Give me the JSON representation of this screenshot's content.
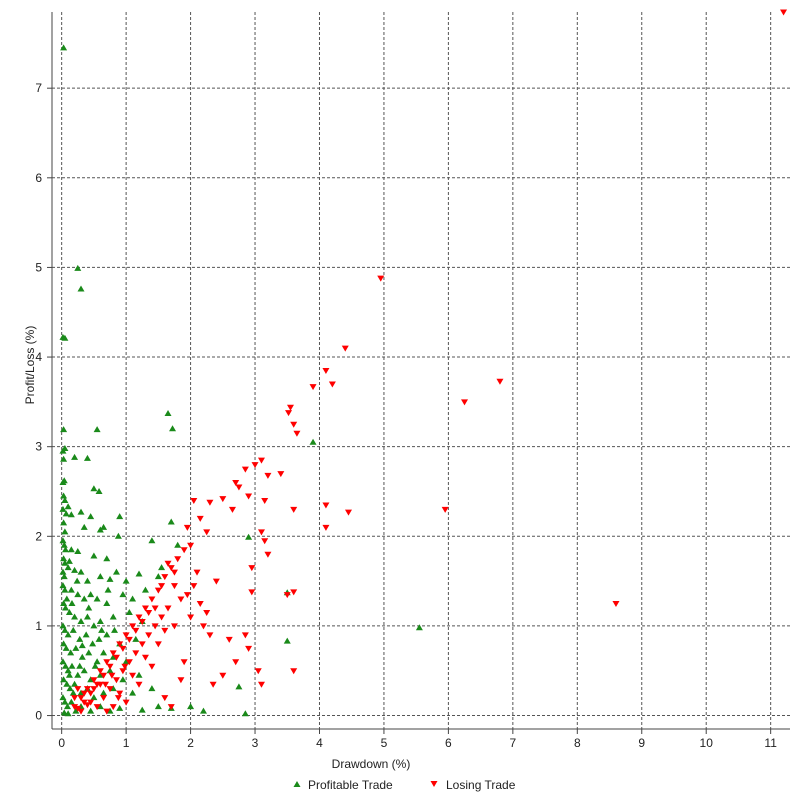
{
  "chart_data": {
    "type": "scatter",
    "xlabel": "Drawdown (%)",
    "ylabel": "Profit/Loss (%)",
    "xlim": [
      -0.15,
      11.3
    ],
    "ylim": [
      -0.15,
      7.85
    ],
    "x_ticks": [
      "0",
      "1",
      "2",
      "3",
      "4",
      "5",
      "6",
      "7",
      "8",
      "9",
      "10",
      "11"
    ],
    "y_ticks": [
      "0",
      "1",
      "2",
      "3",
      "4",
      "5",
      "6",
      "7"
    ],
    "grid": true,
    "legend_position": "bottom-center",
    "series": [
      {
        "name": "Profitable Trade",
        "marker": "triangle-up",
        "color": "#1a8a1a",
        "points": [
          [
            0.03,
            7.45
          ],
          [
            0.25,
            4.99
          ],
          [
            0.3,
            4.76
          ],
          [
            0.02,
            4.22
          ],
          [
            0.05,
            4.21
          ],
          [
            1.65,
            3.37
          ],
          [
            1.72,
            3.2
          ],
          [
            0.03,
            3.19
          ],
          [
            0.55,
            3.19
          ],
          [
            3.9,
            3.05
          ],
          [
            0.02,
            2.95
          ],
          [
            0.05,
            2.98
          ],
          [
            0.03,
            2.86
          ],
          [
            0.2,
            2.88
          ],
          [
            0.4,
            2.87
          ],
          [
            0.5,
            2.53
          ],
          [
            0.58,
            2.5
          ],
          [
            0.02,
            2.6
          ],
          [
            0.04,
            2.62
          ],
          [
            0.03,
            2.45
          ],
          [
            0.05,
            2.4
          ],
          [
            0.02,
            2.3
          ],
          [
            0.1,
            2.33
          ],
          [
            0.3,
            2.27
          ],
          [
            0.15,
            2.24
          ],
          [
            0.45,
            2.22
          ],
          [
            0.9,
            2.22
          ],
          [
            0.35,
            2.1
          ],
          [
            0.6,
            2.07
          ],
          [
            0.65,
            2.1
          ],
          [
            0.03,
            2.15
          ],
          [
            0.05,
            2.05
          ],
          [
            0.02,
            1.95
          ],
          [
            0.04,
            1.9
          ],
          [
            1.4,
            1.95
          ],
          [
            1.7,
            2.16
          ],
          [
            0.88,
            2.0
          ],
          [
            0.15,
            1.85
          ],
          [
            0.25,
            1.83
          ],
          [
            0.5,
            1.78
          ],
          [
            0.7,
            1.75
          ],
          [
            2.9,
            1.99
          ],
          [
            0.03,
            1.75
          ],
          [
            0.05,
            1.7
          ],
          [
            0.02,
            1.6
          ],
          [
            0.04,
            1.55
          ],
          [
            0.1,
            1.65
          ],
          [
            0.2,
            1.62
          ],
          [
            0.3,
            1.6
          ],
          [
            0.4,
            1.5
          ],
          [
            0.6,
            1.55
          ],
          [
            0.75,
            1.52
          ],
          [
            0.85,
            1.6
          ],
          [
            1.0,
            1.5
          ],
          [
            1.2,
            1.58
          ],
          [
            1.5,
            1.55
          ],
          [
            1.8,
            1.9
          ],
          [
            1.55,
            1.65
          ],
          [
            0.02,
            1.45
          ],
          [
            0.05,
            1.4
          ],
          [
            0.15,
            1.4
          ],
          [
            0.25,
            1.35
          ],
          [
            0.35,
            1.3
          ],
          [
            0.45,
            1.35
          ],
          [
            0.55,
            1.3
          ],
          [
            0.7,
            1.25
          ],
          [
            0.95,
            1.35
          ],
          [
            1.1,
            1.3
          ],
          [
            1.3,
            1.4
          ],
          [
            3.5,
            1.37
          ],
          [
            0.03,
            1.25
          ],
          [
            0.06,
            1.2
          ],
          [
            0.12,
            1.15
          ],
          [
            0.2,
            1.1
          ],
          [
            0.3,
            1.05
          ],
          [
            0.4,
            1.1
          ],
          [
            0.5,
            1.0
          ],
          [
            0.6,
            1.05
          ],
          [
            0.8,
            1.1
          ],
          [
            1.05,
            1.15
          ],
          [
            1.25,
            1.05
          ],
          [
            0.02,
            1.0
          ],
          [
            0.05,
            0.95
          ],
          [
            0.1,
            0.9
          ],
          [
            0.18,
            0.95
          ],
          [
            0.28,
            0.85
          ],
          [
            0.38,
            0.9
          ],
          [
            0.48,
            0.8
          ],
          [
            0.58,
            0.85
          ],
          [
            0.7,
            0.9
          ],
          [
            0.9,
            0.8
          ],
          [
            1.15,
            0.85
          ],
          [
            5.55,
            0.98
          ],
          [
            0.03,
            0.8
          ],
          [
            0.07,
            0.75
          ],
          [
            0.14,
            0.7
          ],
          [
            0.22,
            0.75
          ],
          [
            0.32,
            0.65
          ],
          [
            0.42,
            0.7
          ],
          [
            0.55,
            0.6
          ],
          [
            0.65,
            0.7
          ],
          [
            0.8,
            0.65
          ],
          [
            1.0,
            0.6
          ],
          [
            3.5,
            0.83
          ],
          [
            0.02,
            0.6
          ],
          [
            0.06,
            0.55
          ],
          [
            0.1,
            0.5
          ],
          [
            0.16,
            0.55
          ],
          [
            0.25,
            0.45
          ],
          [
            0.35,
            0.5
          ],
          [
            0.45,
            0.4
          ],
          [
            0.6,
            0.45
          ],
          [
            0.75,
            0.5
          ],
          [
            0.95,
            0.4
          ],
          [
            1.2,
            0.45
          ],
          [
            0.03,
            0.4
          ],
          [
            0.08,
            0.35
          ],
          [
            0.13,
            0.3
          ],
          [
            0.2,
            0.35
          ],
          [
            0.3,
            0.25
          ],
          [
            0.4,
            0.3
          ],
          [
            0.5,
            0.2
          ],
          [
            0.65,
            0.25
          ],
          [
            0.8,
            0.3
          ],
          [
            1.1,
            0.25
          ],
          [
            1.4,
            0.3
          ],
          [
            2.75,
            0.32
          ],
          [
            0.02,
            0.2
          ],
          [
            0.05,
            0.15
          ],
          [
            0.09,
            0.1
          ],
          [
            0.15,
            0.15
          ],
          [
            0.22,
            0.05
          ],
          [
            0.3,
            0.1
          ],
          [
            0.45,
            0.05
          ],
          [
            0.6,
            0.1
          ],
          [
            0.75,
            0.05
          ],
          [
            0.9,
            0.08
          ],
          [
            1.25,
            0.06
          ],
          [
            1.5,
            0.1
          ],
          [
            1.7,
            0.08
          ],
          [
            2.0,
            0.1
          ],
          [
            2.2,
            0.05
          ],
          [
            2.85,
            0.02
          ],
          [
            0.04,
            0.03
          ],
          [
            0.1,
            0.02
          ],
          [
            0.18,
            0.25
          ],
          [
            0.28,
            0.55
          ],
          [
            0.12,
            0.45
          ],
          [
            0.08,
            1.3
          ],
          [
            0.16,
            1.25
          ],
          [
            0.24,
            1.5
          ],
          [
            0.32,
            0.78
          ],
          [
            0.42,
            1.2
          ],
          [
            0.52,
            0.55
          ],
          [
            0.62,
            0.95
          ],
          [
            0.72,
            1.4
          ],
          [
            0.82,
            0.95
          ],
          [
            0.07,
            2.25
          ],
          [
            0.12,
            1.72
          ],
          [
            0.06,
            1.85
          ]
        ]
      },
      {
        "name": "Losing Trade",
        "marker": "triangle-down",
        "color": "#ff0000",
        "points": [
          [
            11.2,
            7.85
          ],
          [
            4.95,
            4.88
          ],
          [
            4.4,
            4.1
          ],
          [
            4.1,
            3.85
          ],
          [
            4.2,
            3.7
          ],
          [
            3.9,
            3.67
          ],
          [
            6.8,
            3.73
          ],
          [
            6.25,
            3.5
          ],
          [
            3.55,
            3.44
          ],
          [
            3.52,
            3.38
          ],
          [
            3.6,
            3.25
          ],
          [
            3.65,
            3.15
          ],
          [
            3.1,
            2.85
          ],
          [
            3.0,
            2.8
          ],
          [
            2.85,
            2.75
          ],
          [
            3.4,
            2.7
          ],
          [
            3.2,
            2.68
          ],
          [
            2.7,
            2.6
          ],
          [
            2.75,
            2.55
          ],
          [
            2.9,
            2.45
          ],
          [
            3.15,
            2.4
          ],
          [
            2.5,
            2.42
          ],
          [
            2.3,
            2.38
          ],
          [
            2.05,
            2.4
          ],
          [
            3.6,
            2.3
          ],
          [
            4.1,
            2.35
          ],
          [
            4.45,
            2.27
          ],
          [
            5.95,
            2.3
          ],
          [
            4.1,
            2.1
          ],
          [
            2.65,
            2.3
          ],
          [
            2.15,
            2.2
          ],
          [
            1.95,
            2.1
          ],
          [
            2.25,
            2.05
          ],
          [
            3.1,
            2.05
          ],
          [
            3.15,
            1.95
          ],
          [
            3.2,
            1.8
          ],
          [
            2.95,
            1.65
          ],
          [
            2.0,
            1.9
          ],
          [
            1.9,
            1.85
          ],
          [
            1.8,
            1.75
          ],
          [
            1.7,
            1.65
          ],
          [
            1.6,
            1.55
          ],
          [
            1.75,
            1.45
          ],
          [
            2.1,
            1.6
          ],
          [
            2.4,
            1.5
          ],
          [
            1.5,
            1.4
          ],
          [
            1.4,
            1.3
          ],
          [
            1.3,
            1.2
          ],
          [
            1.2,
            1.1
          ],
          [
            1.1,
            1.0
          ],
          [
            1.0,
            0.9
          ],
          [
            0.9,
            0.8
          ],
          [
            0.8,
            0.7
          ],
          [
            0.7,
            0.6
          ],
          [
            0.6,
            0.5
          ],
          [
            0.5,
            0.4
          ],
          [
            0.4,
            0.3
          ],
          [
            0.3,
            0.2
          ],
          [
            0.2,
            0.1
          ],
          [
            3.6,
            1.38
          ],
          [
            3.5,
            1.35
          ],
          [
            2.95,
            1.38
          ],
          [
            8.6,
            1.25
          ],
          [
            1.65,
            1.2
          ],
          [
            1.55,
            1.1
          ],
          [
            1.45,
            1.0
          ],
          [
            1.35,
            0.9
          ],
          [
            1.25,
            0.8
          ],
          [
            1.15,
            0.7
          ],
          [
            1.05,
            0.6
          ],
          [
            0.95,
            0.5
          ],
          [
            0.85,
            0.4
          ],
          [
            0.75,
            0.3
          ],
          [
            0.65,
            0.2
          ],
          [
            0.55,
            0.1
          ],
          [
            0.45,
            0.15
          ],
          [
            0.35,
            0.25
          ],
          [
            0.25,
            0.3
          ],
          [
            0.2,
            0.2
          ],
          [
            0.3,
            0.05
          ],
          [
            2.0,
            1.1
          ],
          [
            2.2,
            1.0
          ],
          [
            2.3,
            0.9
          ],
          [
            2.6,
            0.85
          ],
          [
            2.9,
            0.75
          ],
          [
            3.05,
            0.5
          ],
          [
            3.1,
            0.35
          ],
          [
            3.6,
            0.5
          ],
          [
            2.35,
            0.35
          ],
          [
            1.9,
            0.6
          ],
          [
            1.85,
            0.4
          ],
          [
            1.7,
            0.1
          ],
          [
            1.6,
            0.2
          ],
          [
            1.4,
            0.55
          ],
          [
            1.3,
            0.65
          ],
          [
            1.2,
            0.35
          ],
          [
            1.0,
            0.15
          ],
          [
            0.9,
            0.25
          ],
          [
            0.8,
            0.1
          ],
          [
            0.7,
            0.05
          ],
          [
            0.6,
            0.35
          ],
          [
            0.5,
            0.3
          ],
          [
            0.4,
            0.12
          ],
          [
            1.75,
            1.0
          ],
          [
            1.85,
            1.3
          ],
          [
            1.95,
            1.35
          ],
          [
            1.55,
            1.45
          ],
          [
            1.45,
            1.2
          ],
          [
            1.35,
            1.15
          ],
          [
            1.25,
            1.05
          ],
          [
            1.15,
            0.95
          ],
          [
            1.05,
            0.85
          ],
          [
            0.95,
            0.75
          ],
          [
            0.85,
            0.65
          ],
          [
            0.75,
            0.55
          ],
          [
            0.65,
            0.45
          ],
          [
            0.55,
            0.35
          ],
          [
            0.45,
            0.25
          ],
          [
            0.35,
            0.15
          ],
          [
            0.25,
            0.08
          ],
          [
            2.5,
            0.45
          ],
          [
            2.7,
            0.6
          ],
          [
            2.85,
            0.9
          ],
          [
            1.65,
            1.7
          ],
          [
            1.75,
            1.6
          ],
          [
            2.05,
            1.45
          ],
          [
            2.15,
            1.25
          ],
          [
            2.25,
            1.15
          ],
          [
            1.5,
            0.8
          ],
          [
            1.6,
            0.95
          ],
          [
            1.1,
            0.45
          ],
          [
            0.98,
            0.55
          ],
          [
            0.88,
            0.2
          ],
          [
            0.78,
            0.45
          ],
          [
            0.68,
            0.35
          ]
        ]
      }
    ]
  }
}
